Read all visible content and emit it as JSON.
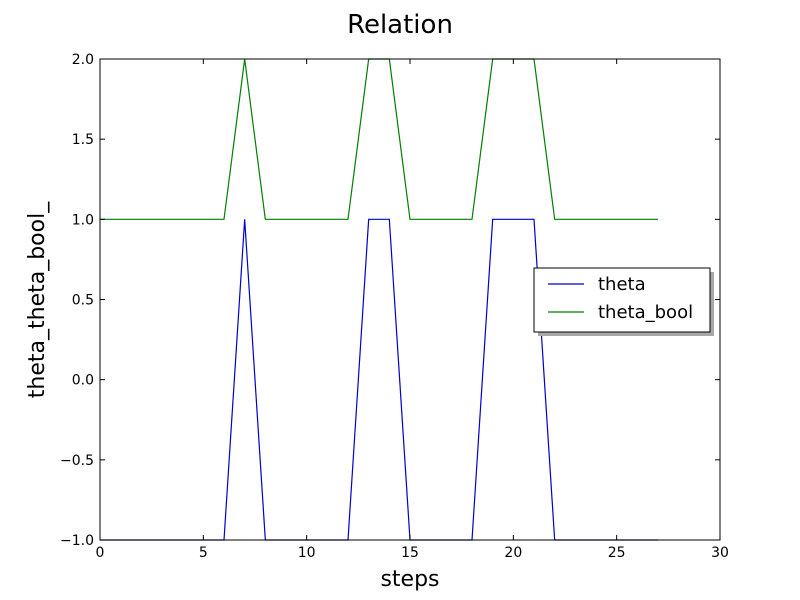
{
  "chart_data": {
    "type": "line",
    "title": "Relation",
    "xlabel": "steps",
    "ylabel": "theta_theta_bool_",
    "xlim": [
      0,
      30
    ],
    "ylim": [
      -1.0,
      2.0
    ],
    "xticks": [
      0,
      5,
      10,
      15,
      20,
      25,
      30
    ],
    "yticks": [
      -1.0,
      -0.5,
      0.0,
      0.5,
      1.0,
      1.5,
      2.0
    ],
    "xtick_labels": [
      "0",
      "5",
      "10",
      "15",
      "20",
      "25",
      "30"
    ],
    "ytick_labels": [
      "−1.0",
      "−0.5",
      "0.0",
      "0.5",
      "1.0",
      "1.5",
      "2.0"
    ],
    "grid": false,
    "legend_position": "center-right",
    "x": [
      0,
      1,
      2,
      3,
      4,
      5,
      6,
      7,
      8,
      9,
      10,
      11,
      12,
      13,
      14,
      15,
      16,
      17,
      18,
      19,
      20,
      21,
      22,
      23,
      24,
      25,
      26,
      27
    ],
    "series": [
      {
        "name": "theta",
        "color": "#0000cc",
        "values": [
          -1,
          -1,
          -1,
          -1,
          -1,
          -1,
          -1,
          1,
          -1,
          -1,
          -1,
          -1,
          -1,
          1,
          1,
          -1,
          -1,
          -1,
          -1,
          1,
          1,
          1,
          -1,
          -1,
          -1,
          -1,
          -1,
          -1
        ]
      },
      {
        "name": "theta_bool",
        "color": "#007f00",
        "values": [
          1,
          1,
          1,
          1,
          1,
          1,
          1,
          2,
          1,
          1,
          1,
          1,
          1,
          2,
          2,
          1,
          1,
          1,
          1,
          2,
          2,
          2,
          1,
          1,
          1,
          1,
          1,
          1
        ]
      }
    ]
  }
}
